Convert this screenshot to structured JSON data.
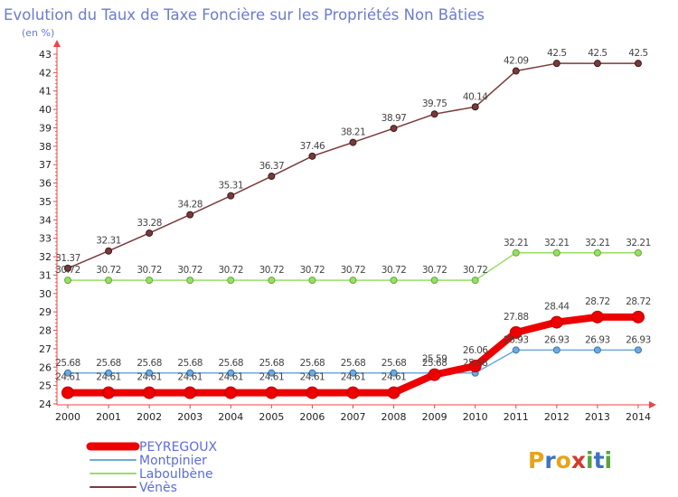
{
  "chart_data": {
    "type": "line",
    "title": "Evolution du Taux de Taxe Foncière sur les Propriétés Non Bâties",
    "ylabel": "(en %)",
    "xlabel": "",
    "ylim": [
      24,
      43
    ],
    "categories": [
      "2000",
      "2001",
      "2002",
      "2003",
      "2004",
      "2005",
      "2006",
      "2007",
      "2008",
      "2009",
      "2010",
      "2011",
      "2012",
      "2013",
      "2014"
    ],
    "yticks": [
      "24",
      "25",
      "26",
      "27",
      "28",
      "29",
      "30",
      "31",
      "32",
      "33",
      "34",
      "35",
      "36",
      "37",
      "38",
      "39",
      "40",
      "41",
      "42",
      "43"
    ],
    "series": [
      {
        "name": "PEYREGOUX",
        "color": "#ee0000",
        "values": [
          24.61,
          24.61,
          24.61,
          24.61,
          24.61,
          24.61,
          24.61,
          24.61,
          24.61,
          25.59,
          26.06,
          27.88,
          28.44,
          28.72,
          28.72
        ],
        "labels": [
          "24.61",
          "24.61",
          "24.61",
          "24.61",
          "24.61",
          "24.61",
          "24.61",
          "24.61",
          "24.61",
          "25.59",
          "26.06",
          "27.88",
          "28.44",
          "28.72",
          "28.72"
        ]
      },
      {
        "name": "Montpinier",
        "color": "#6fa8dc",
        "values": [
          25.68,
          25.68,
          25.68,
          25.68,
          25.68,
          25.68,
          25.68,
          25.68,
          25.68,
          25.68,
          25.68,
          26.93,
          26.93,
          26.93,
          26.93
        ],
        "labels": [
          "25.68",
          "25.68",
          "25.68",
          "25.68",
          "25.68",
          "25.68",
          "25.68",
          "25.68",
          "25.68",
          "25.68",
          "25.68",
          "26.93",
          "26.93",
          "26.93",
          "26.93"
        ]
      },
      {
        "name": "Laboulbène",
        "color": "#99dd66",
        "values": [
          30.72,
          30.72,
          30.72,
          30.72,
          30.72,
          30.72,
          30.72,
          30.72,
          30.72,
          30.72,
          30.72,
          32.21,
          32.21,
          32.21,
          32.21
        ],
        "labels": [
          "30.72",
          "30.72",
          "30.72",
          "30.72",
          "30.72",
          "30.72",
          "30.72",
          "30.72",
          "30.72",
          "30.72",
          "30.72",
          "32.21",
          "32.21",
          "32.21",
          "32.21"
        ]
      },
      {
        "name": "Vénès",
        "color": "#7a3a3a",
        "values": [
          31.37,
          32.31,
          33.28,
          34.28,
          35.31,
          36.37,
          37.46,
          38.21,
          38.97,
          39.75,
          40.14,
          42.09,
          42.5,
          42.5,
          42.5
        ],
        "labels": [
          "31.37",
          "32.31",
          "33.28",
          "34.28",
          "35.31",
          "36.37",
          "37.46",
          "38.21",
          "38.97",
          "39.75",
          "40.14",
          "42.09",
          "42.5",
          "42.5",
          "42.5"
        ]
      }
    ],
    "legend_position": "bottom-left",
    "grid": false
  },
  "branding": {
    "logo_text": "Proxiti"
  }
}
